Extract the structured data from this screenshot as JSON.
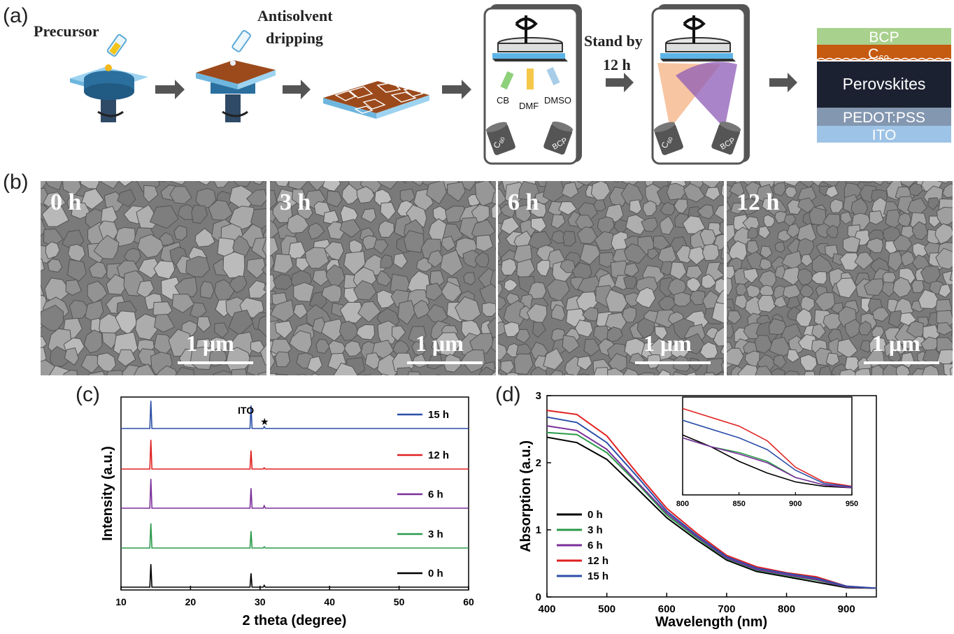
{
  "panel_labels": {
    "a": "(a)",
    "b": "(b)",
    "c": "(c)",
    "d": "(d)"
  },
  "schematic": {
    "precursor": "Precursor",
    "antisolvent_line1": "Antisolvent",
    "antisolvent_line2": "dripping",
    "solvents": [
      "CB",
      "DMF",
      "DMSO"
    ],
    "source_c60": "C",
    "source_c60_sub": "60",
    "source_bcp": "BCP",
    "stand_line1": "Stand by",
    "stand_line2": "12 h",
    "stack": {
      "layers": [
        "BCP",
        "C",
        "Perovskites",
        "PEDOT:PSS",
        "ITO"
      ],
      "c60_sub": "60",
      "colors": [
        "#a9d18e",
        "#c55a11",
        "#1c2131",
        "#8497b0",
        "#9dc3e6"
      ]
    }
  },
  "sem": {
    "labels": [
      "0 h",
      "3 h",
      "6 h",
      "12 h"
    ],
    "scale": "1 μm"
  },
  "xrd": {
    "annotation": "ITO",
    "star": "★"
  },
  "chart_data": [
    {
      "type": "line",
      "xlabel": "2 theta (degree)",
      "ylabel": "Intensity (a.u.)",
      "xlim": [
        10,
        60
      ],
      "xticks": [
        10,
        20,
        30,
        40,
        50,
        60
      ],
      "stacked": true,
      "legend_position": "right",
      "series": [
        {
          "name": "15 h",
          "color": "#2b4fa8",
          "peaks": [
            {
              "x": 14.3,
              "h": 0.9
            },
            {
              "x": 28.7,
              "h": 0.75
            },
            {
              "x": 30.6,
              "h": 0.06
            }
          ]
        },
        {
          "name": "12 h",
          "color": "#e02020",
          "peaks": [
            {
              "x": 14.3,
              "h": 0.95
            },
            {
              "x": 28.7,
              "h": 0.6
            },
            {
              "x": 30.6,
              "h": 0.04
            }
          ]
        },
        {
          "name": "6 h",
          "color": "#7b2f9a",
          "peaks": [
            {
              "x": 14.3,
              "h": 0.95
            },
            {
              "x": 28.7,
              "h": 0.65
            },
            {
              "x": 30.6,
              "h": 0.08
            }
          ]
        },
        {
          "name": "3 h",
          "color": "#2a9a4a",
          "peaks": [
            {
              "x": 14.3,
              "h": 0.8
            },
            {
              "x": 28.7,
              "h": 0.55
            },
            {
              "x": 30.6,
              "h": 0.04
            }
          ]
        },
        {
          "name": "0 h",
          "color": "#000000",
          "peaks": [
            {
              "x": 14.3,
              "h": 0.75
            },
            {
              "x": 28.7,
              "h": 0.45
            },
            {
              "x": 30.6,
              "h": 0.06
            }
          ]
        }
      ]
    },
    {
      "type": "line",
      "xlabel": "Wavelength (nm)",
      "ylabel": "Absorption (a.u.)",
      "xlim": [
        400,
        950
      ],
      "ylim": [
        0,
        3
      ],
      "xticks": [
        400,
        500,
        600,
        700,
        800,
        900
      ],
      "yticks": [
        0,
        1,
        2,
        3
      ],
      "legend_position": "bottom-left",
      "series": [
        {
          "name": "0 h",
          "color": "#000000",
          "x": [
            400,
            450,
            500,
            550,
            600,
            650,
            700,
            750,
            800,
            850,
            900,
            950
          ],
          "y": [
            2.38,
            2.3,
            2.05,
            1.62,
            1.18,
            0.85,
            0.55,
            0.38,
            0.3,
            0.22,
            0.14,
            0.13
          ]
        },
        {
          "name": "3 h",
          "color": "#2a9a4a",
          "x": [
            400,
            450,
            500,
            550,
            600,
            650,
            700,
            750,
            800,
            850,
            900,
            950
          ],
          "y": [
            2.45,
            2.42,
            2.15,
            1.7,
            1.22,
            0.88,
            0.57,
            0.4,
            0.32,
            0.25,
            0.15,
            0.13
          ]
        },
        {
          "name": "6 h",
          "color": "#7b2f9a",
          "x": [
            400,
            450,
            500,
            550,
            600,
            650,
            700,
            750,
            800,
            850,
            900,
            950
          ],
          "y": [
            2.55,
            2.48,
            2.2,
            1.72,
            1.25,
            0.9,
            0.58,
            0.41,
            0.33,
            0.26,
            0.15,
            0.13
          ]
        },
        {
          "name": "12 h",
          "color": "#e02020",
          "x": [
            400,
            450,
            500,
            550,
            600,
            650,
            700,
            750,
            800,
            850,
            900,
            950
          ],
          "y": [
            2.78,
            2.72,
            2.4,
            1.85,
            1.32,
            0.95,
            0.62,
            0.45,
            0.36,
            0.3,
            0.16,
            0.13
          ]
        },
        {
          "name": "15 h",
          "color": "#2b4fa8",
          "x": [
            400,
            450,
            500,
            550,
            600,
            650,
            700,
            750,
            800,
            850,
            900,
            950
          ],
          "y": [
            2.68,
            2.6,
            2.3,
            1.8,
            1.28,
            0.92,
            0.6,
            0.43,
            0.35,
            0.28,
            0.16,
            0.13
          ]
        }
      ],
      "inset": {
        "xlim": [
          800,
          950
        ],
        "xticks": [
          800,
          850,
          900,
          950
        ],
        "series": [
          {
            "name": "0 h",
            "color": "#000000",
            "x": [
              800,
              825,
              850,
              875,
              900,
              925,
              950
            ],
            "y": [
              0.31,
              0.27,
              0.22,
              0.18,
              0.15,
              0.135,
              0.13
            ]
          },
          {
            "name": "3 h",
            "color": "#2a9a4a",
            "x": [
              800,
              825,
              850,
              875,
              900,
              925,
              950
            ],
            "y": [
              0.3,
              0.27,
              0.25,
              0.22,
              0.165,
              0.14,
              0.13
            ]
          },
          {
            "name": "6 h",
            "color": "#7b2f9a",
            "x": [
              800,
              825,
              850,
              875,
              900,
              925,
              950
            ],
            "y": [
              0.3,
              0.27,
              0.245,
              0.215,
              0.165,
              0.14,
              0.13
            ]
          },
          {
            "name": "12 h",
            "color": "#e02020",
            "x": [
              800,
              825,
              850,
              875,
              900,
              925,
              950
            ],
            "y": [
              0.4,
              0.37,
              0.34,
              0.29,
              0.2,
              0.15,
              0.135
            ]
          },
          {
            "name": "15 h",
            "color": "#2b4fa8",
            "x": [
              800,
              825,
              850,
              875,
              900,
              925,
              950
            ],
            "y": [
              0.36,
              0.33,
              0.3,
              0.26,
              0.19,
              0.145,
              0.133
            ]
          }
        ]
      }
    }
  ]
}
